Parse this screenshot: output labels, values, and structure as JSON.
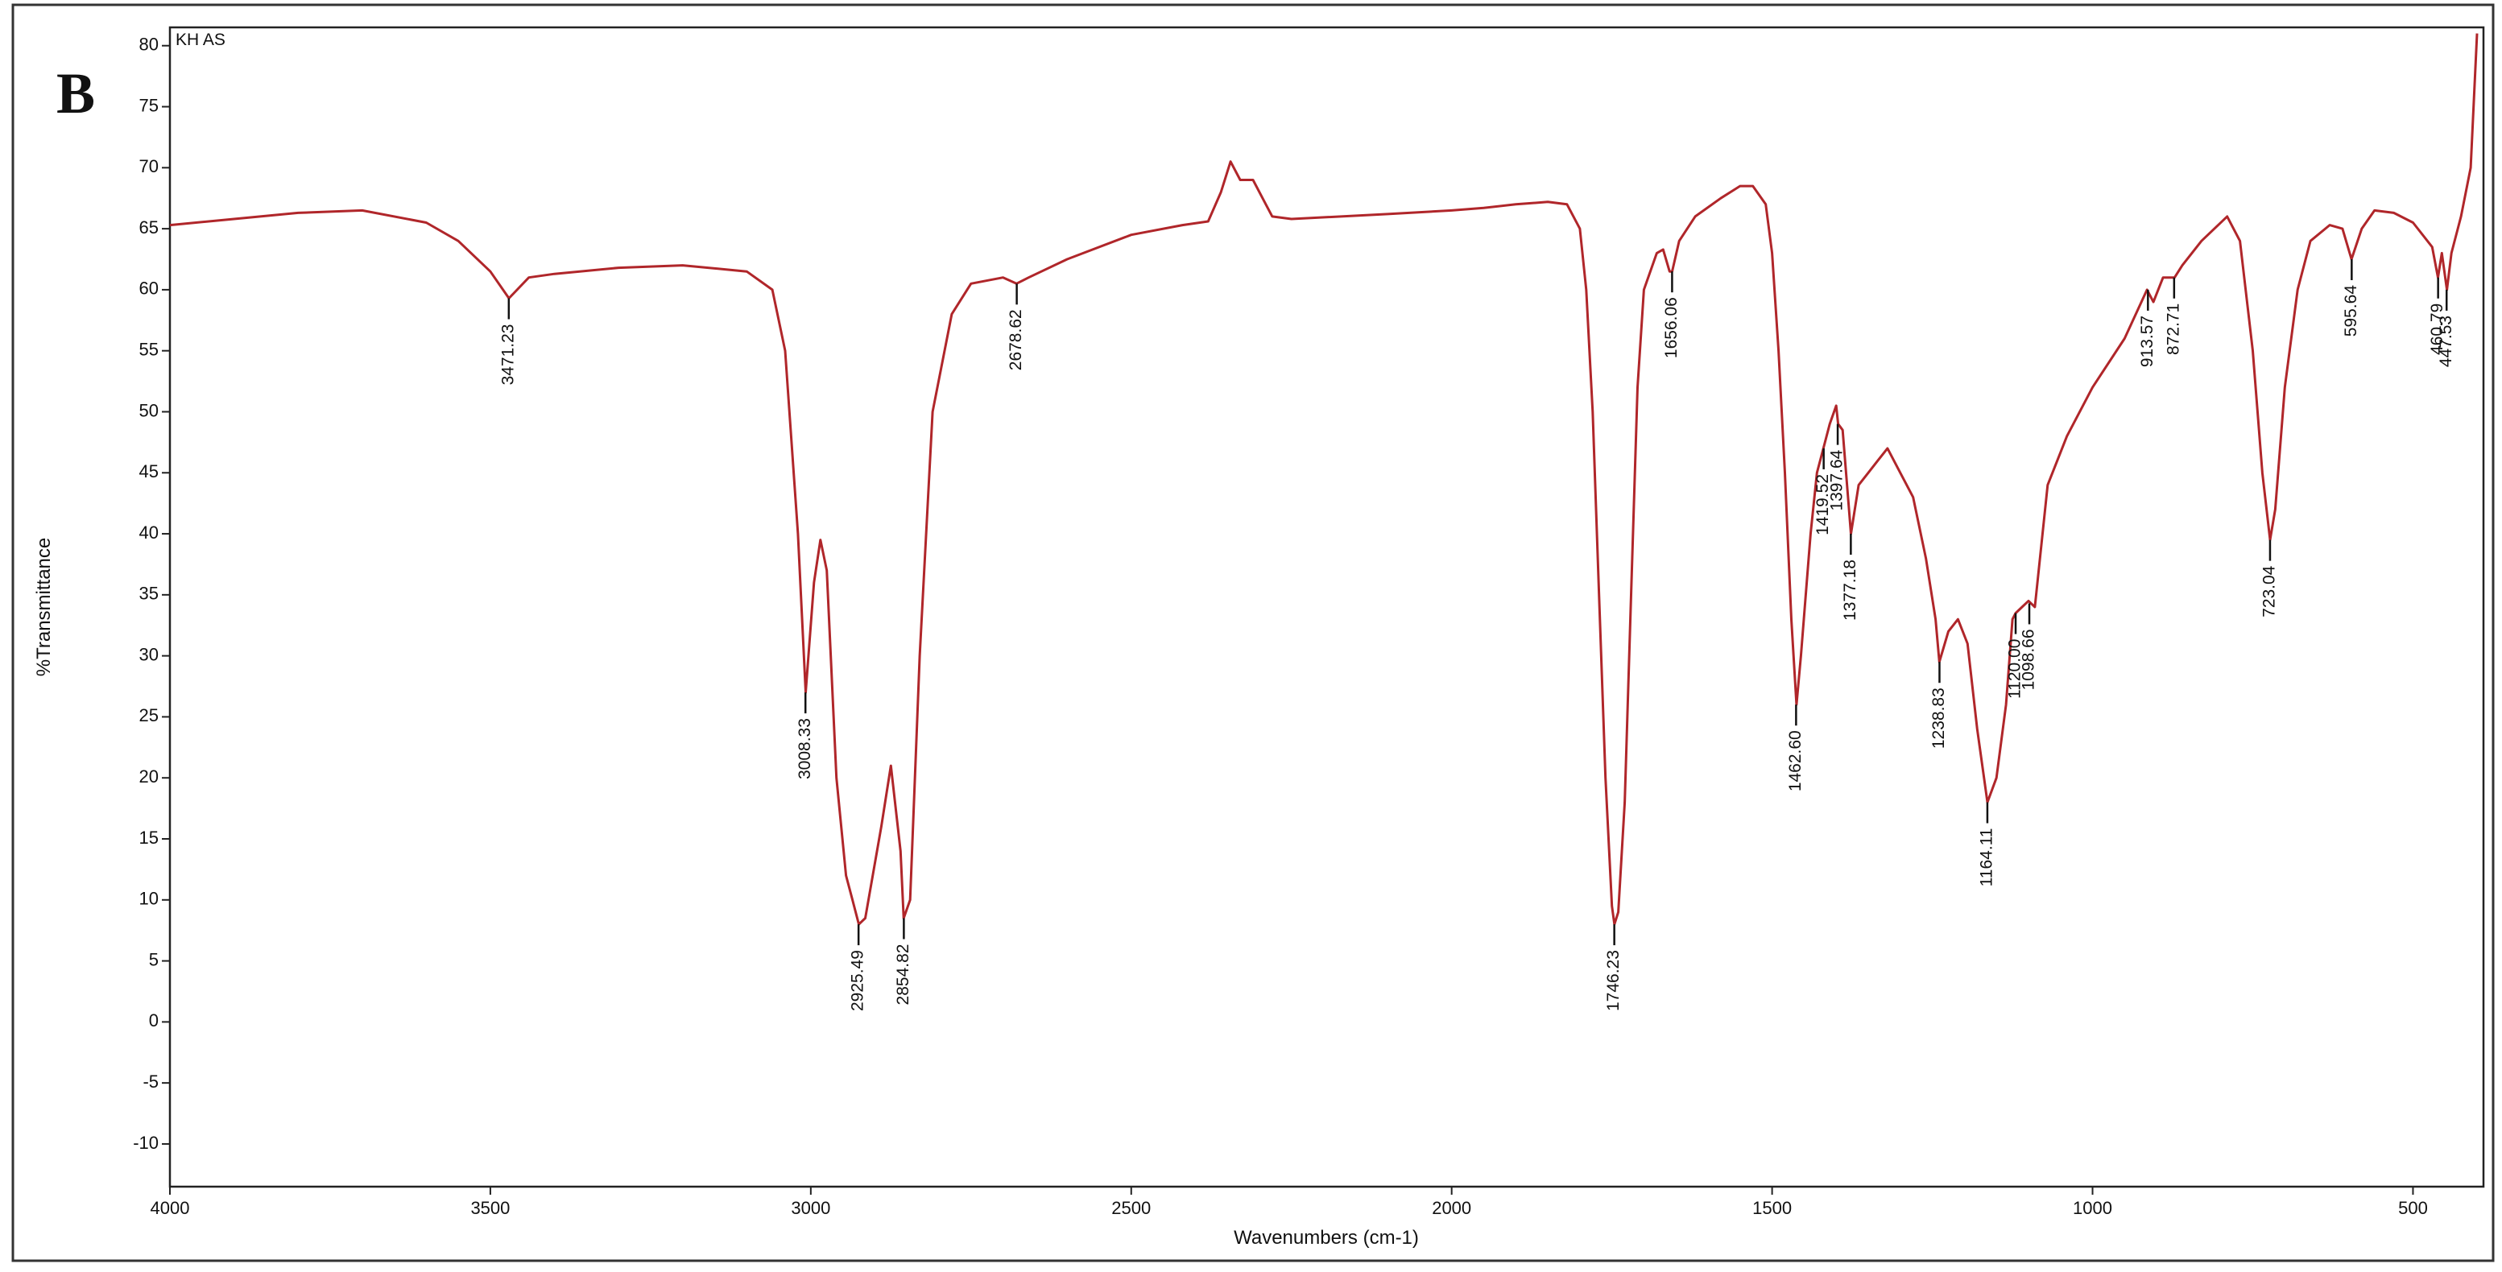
{
  "chart_data": {
    "type": "line",
    "panel_label": "B",
    "title": "KH AS",
    "xlabel": "Wavenumbers (cm-1)",
    "ylabel": "%Transmittance",
    "xlim": [
      4000,
      390
    ],
    "ylim": [
      -13.5,
      81.5
    ],
    "xticks": [
      4000,
      3500,
      3000,
      2500,
      2000,
      1500,
      1000,
      500
    ],
    "yticks": [
      -10,
      -5,
      0,
      5,
      10,
      15,
      20,
      25,
      30,
      35,
      40,
      45,
      50,
      55,
      60,
      65,
      70,
      75,
      80
    ],
    "x": [
      4000,
      3900,
      3800,
      3700,
      3600,
      3550,
      3500,
      3471,
      3440,
      3400,
      3300,
      3200,
      3100,
      3060,
      3040,
      3020,
      3008,
      2995,
      2985,
      2975,
      2960,
      2945,
      2935,
      2925,
      2915,
      2890,
      2875,
      2860,
      2855,
      2845,
      2830,
      2810,
      2780,
      2750,
      2700,
      2679,
      2660,
      2600,
      2500,
      2420,
      2380,
      2360,
      2345,
      2330,
      2310,
      2290,
      2280,
      2250,
      2100,
      2000,
      1950,
      1900,
      1850,
      1820,
      1800,
      1790,
      1780,
      1770,
      1760,
      1750,
      1746,
      1740,
      1730,
      1720,
      1710,
      1700,
      1680,
      1670,
      1660,
      1656,
      1645,
      1620,
      1580,
      1550,
      1530,
      1510,
      1500,
      1490,
      1480,
      1470,
      1462,
      1455,
      1440,
      1430,
      1420,
      1410,
      1400,
      1397,
      1390,
      1380,
      1377,
      1365,
      1350,
      1335,
      1320,
      1300,
      1280,
      1260,
      1245,
      1239,
      1225,
      1210,
      1195,
      1180,
      1164,
      1150,
      1135,
      1125,
      1120,
      1110,
      1100,
      1090,
      1070,
      1040,
      1000,
      950,
      915,
      905,
      890,
      872,
      860,
      830,
      790,
      770,
      750,
      735,
      723,
      715,
      700,
      680,
      660,
      630,
      610,
      596,
      580,
      560,
      530,
      500,
      470,
      461,
      455,
      447,
      440,
      425,
      410,
      400
    ],
    "series": [
      {
        "color": "#b0262a",
        "values": [
          65.3,
          65.8,
          66.3,
          66.5,
          65.5,
          64,
          61.5,
          59.3,
          61,
          61.3,
          61.8,
          62,
          61.5,
          60,
          55,
          40,
          27,
          36,
          39.5,
          37,
          20,
          12,
          10,
          8,
          8.5,
          16,
          21,
          14,
          8.5,
          10,
          30,
          50,
          58,
          60.5,
          61,
          60.5,
          61,
          62.5,
          64.5,
          65.3,
          65.6,
          68,
          70.5,
          69,
          69,
          67,
          66,
          65.8,
          66.2,
          66.5,
          66.7,
          67,
          67.2,
          67,
          65,
          60,
          50,
          35,
          20,
          9.5,
          8,
          9,
          18,
          35,
          52,
          60,
          63,
          63.3,
          61.5,
          61.5,
          64,
          66,
          67.5,
          68.5,
          68.5,
          67,
          63,
          55,
          45,
          33,
          26,
          30,
          40,
          45,
          47,
          49,
          50.5,
          49,
          48.5,
          42,
          40,
          44,
          45,
          46,
          47,
          45,
          43,
          38,
          33,
          29.5,
          32,
          33,
          31,
          24,
          18,
          20,
          26,
          33,
          33.5,
          34,
          34.5,
          34,
          44,
          48,
          52,
          56,
          60,
          59,
          61,
          61,
          62,
          64,
          66,
          64,
          55,
          45,
          39.5,
          42,
          52,
          60,
          64,
          65.3,
          65,
          62.5,
          65,
          66.5,
          66.3,
          65.5,
          63.5,
          61,
          63,
          60,
          63,
          66,
          70,
          81
        ]
      }
    ],
    "peaks": {
      "x": [
        3471.23,
        3008.33,
        2925.49,
        2854.82,
        2678.62,
        1746.23,
        1656.06,
        1462.6,
        1419.52,
        1397.64,
        1377.18,
        1238.83,
        1164.11,
        1120.0,
        1098.66,
        913.57,
        872.71,
        723.04,
        595.64,
        460.79,
        447.53
      ],
      "y": [
        59.3,
        27,
        8,
        8.5,
        60.5,
        8,
        61.5,
        26,
        47,
        49,
        40,
        29.5,
        18,
        33.5,
        34.3,
        60,
        61,
        39.5,
        62.5,
        61,
        60
      ],
      "labels": [
        "3471.23",
        "3008.33",
        "2925.49",
        "2854.82",
        "2678.62",
        "1746.23",
        "1656.06",
        "1462.60",
        "1419.52",
        "1397.64",
        "1377.18",
        "1238.83",
        "1164.11",
        "1120.00",
        "1098.66",
        "913.57",
        "872.71",
        "723.04",
        "595.64",
        "460.79",
        "447.53"
      ]
    }
  }
}
